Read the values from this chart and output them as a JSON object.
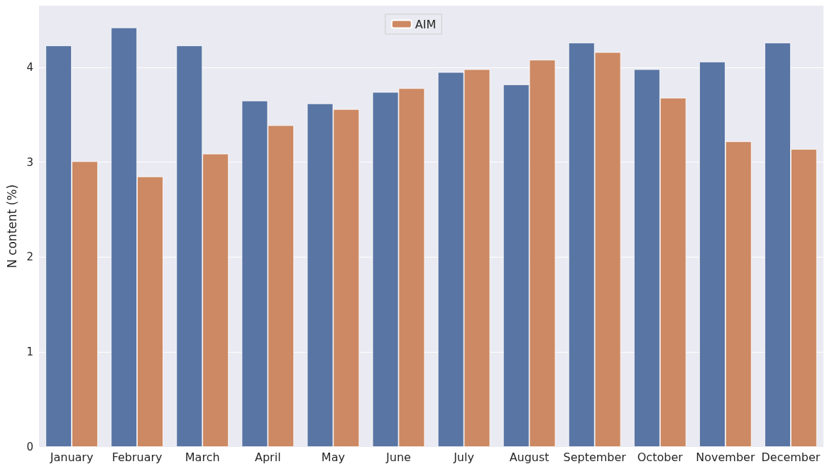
{
  "chart_data": {
    "type": "bar",
    "ylabel": "N content (%)",
    "categories": [
      "January",
      "February",
      "March",
      "April",
      "May",
      "June",
      "July",
      "August",
      "September",
      "October",
      "November",
      "December"
    ],
    "series": [
      {
        "color": "#5975a4",
        "values": [
          4.23,
          4.42,
          4.23,
          3.65,
          3.62,
          3.74,
          3.95,
          3.82,
          4.26,
          3.98,
          4.06,
          4.26
        ]
      },
      {
        "name": "AIM",
        "color": "#cc8963",
        "values": [
          3.01,
          2.85,
          3.09,
          3.39,
          3.56,
          3.78,
          3.98,
          4.08,
          4.16,
          3.68,
          3.22,
          3.14
        ]
      }
    ],
    "ylim": [
      0,
      4.65
    ],
    "yticks": [
      0,
      1,
      2,
      3,
      4
    ],
    "grid": "y",
    "legend": "top"
  }
}
